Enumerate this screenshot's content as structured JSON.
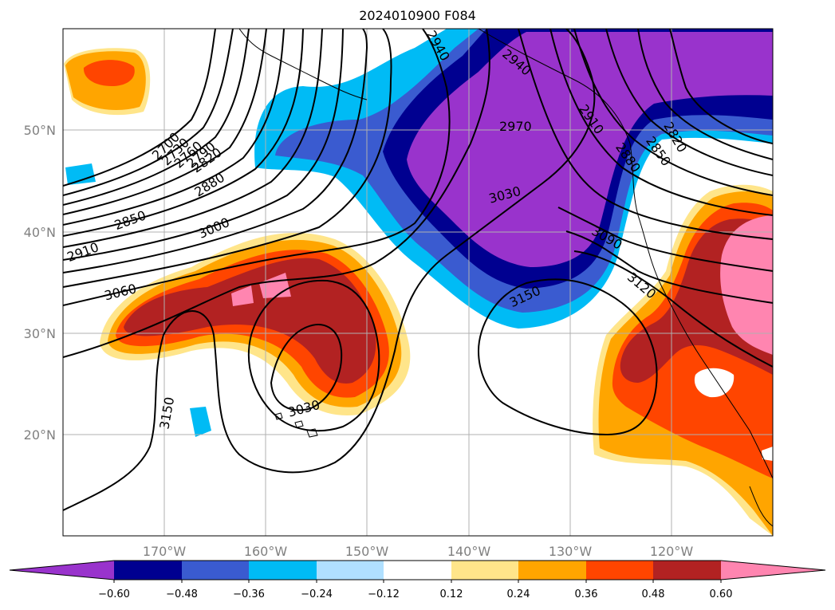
{
  "title": "2024010900 F084",
  "map": {
    "lon_ticks": [
      "170°W",
      "160°W",
      "150°W",
      "140°W",
      "130°W",
      "120°W"
    ],
    "lat_ticks": [
      "50°N",
      "40°N",
      "30°N",
      "20°N"
    ],
    "grid": true,
    "contour_labels": [
      "2700",
      "2730",
      "2760",
      "2790",
      "2820",
      "2850",
      "2880",
      "2910",
      "3000",
      "3060",
      "3150",
      "3030",
      "2940",
      "2940",
      "2970",
      "3030",
      "3090",
      "3120",
      "3150",
      "2910",
      "2880",
      "2850",
      "2820"
    ]
  },
  "colorbar": {
    "labels": [
      "−0.60",
      "−0.48",
      "−0.36",
      "−0.24",
      "−0.12",
      "0.12",
      "0.24",
      "0.36",
      "0.48",
      "0.60"
    ],
    "colors": [
      "#9933cc",
      "#000090",
      "#3a5bd0",
      "#00bbf5",
      "#b0e0ff",
      "#ffffff",
      "#ffe58a",
      "#ffa500",
      "#ff4500",
      "#b22222",
      "#ff85b0"
    ],
    "extend": "both"
  }
}
